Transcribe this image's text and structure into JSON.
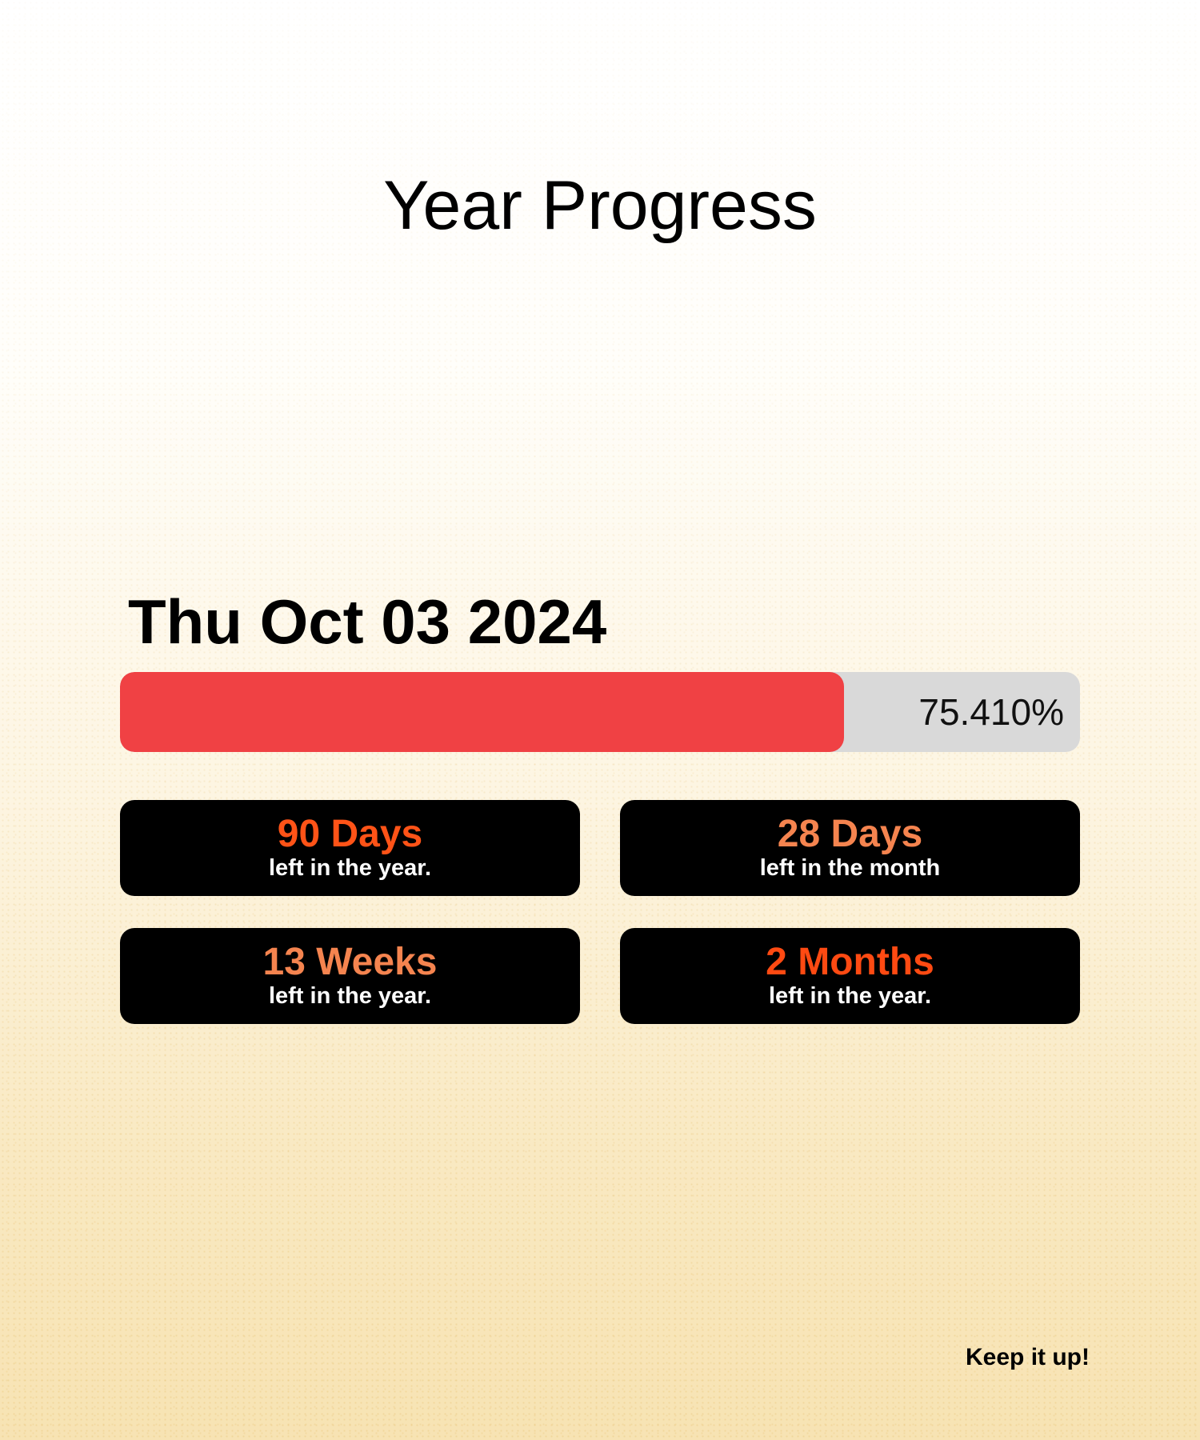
{
  "title": "Year Progress",
  "date": "Thu Oct 03 2024",
  "progress": {
    "value": 75.41,
    "label": "75.410%",
    "fill_color": "#f04144",
    "track_color": "#d9d9d9"
  },
  "stats": [
    {
      "value": "90 Days",
      "caption": "left in the year.",
      "value_color": "#ff5317"
    },
    {
      "value": "28 Days",
      "caption": "left in the month",
      "value_color": "#f5844f"
    },
    {
      "value": "13 Weeks",
      "caption": "left in the year.",
      "value_color": "#f5844f"
    },
    {
      "value": "2 Months",
      "caption": "left in the year.",
      "value_color": "#ff4a12"
    }
  ],
  "footer": "Keep it up!"
}
